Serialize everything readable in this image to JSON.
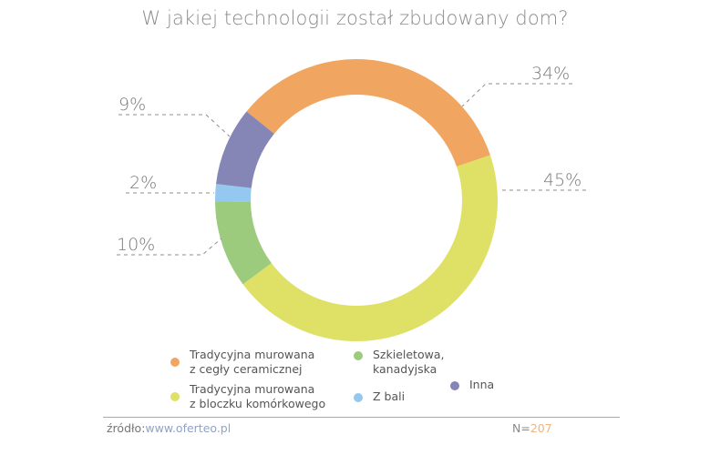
{
  "title": "W jakiej technologii został zbudowany dom?",
  "chart_data": {
    "type": "pie",
    "subtype": "donut",
    "title": "W jakiej technologii został zbudowany dom?",
    "categories": [
      "Tradycyjna murowana z cegły ceramicznej",
      "Tradycyjna murowana z bloczku komórkowego",
      "Szkieletowa, kanadyjska",
      "Z bali",
      "Inna"
    ],
    "values": [
      34,
      45,
      10,
      2,
      9
    ],
    "unit": "%",
    "colors": [
      "#f0a661",
      "#dfe066",
      "#9ccb7e",
      "#94c8ef",
      "#8585b6"
    ],
    "labels": [
      "34%",
      "45%",
      "10%",
      "2%",
      "9%"
    ],
    "start_angle_deg": 309,
    "direction": "clockwise",
    "legend_position": "bottom",
    "sample_size": 207
  },
  "legend": [
    {
      "line1": "Tradycyjna murowana",
      "line2": "z cegły ceramicznej",
      "color": "#f0a661"
    },
    {
      "line1": "Tradycyjna murowana",
      "line2": "z bloczku komórkowego",
      "color": "#dfe066"
    },
    {
      "line1": "Szkieletowa,",
      "line2": "kanadyjska",
      "color": "#9ccb7e"
    },
    {
      "line1": "Z bali",
      "line2": "",
      "color": "#94c8ef"
    },
    {
      "line1": "Inna",
      "line2": "",
      "color": "#8585b6"
    }
  ],
  "footer": {
    "source_label": "źródło:",
    "source_url": "www.oferteo.pl",
    "n_label": "N=",
    "n_value": "207"
  }
}
